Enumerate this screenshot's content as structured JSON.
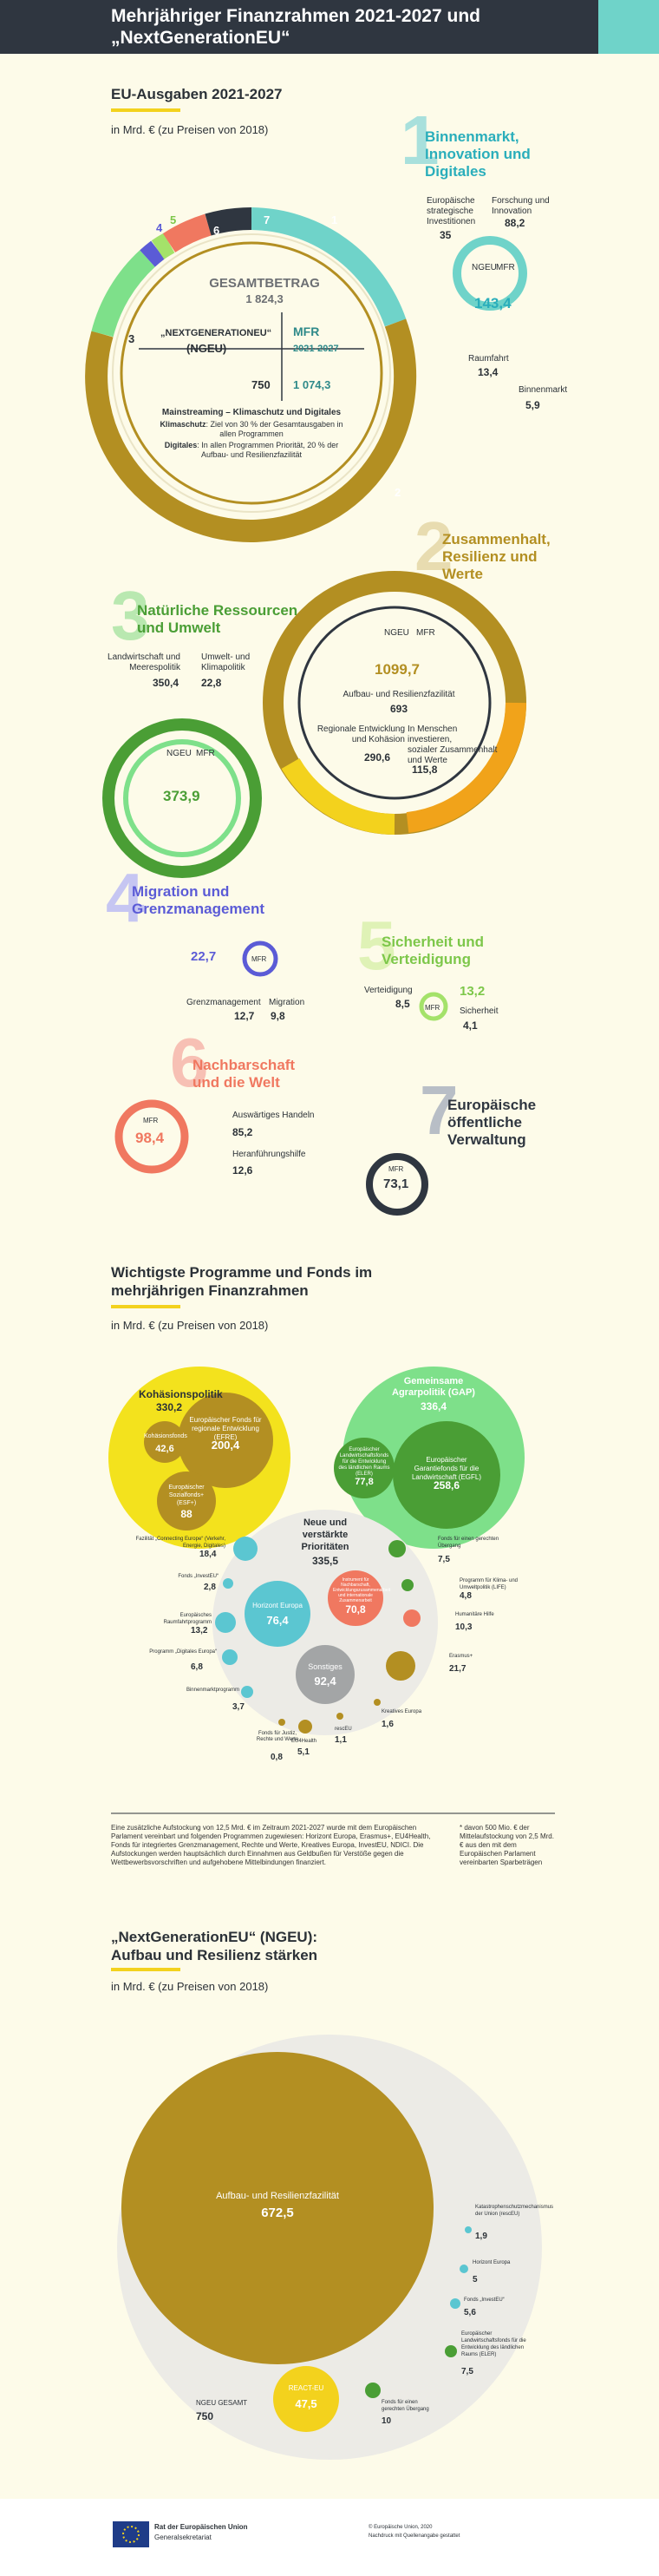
{
  "header": {
    "title_line1": "Mehrjähriger Finanzrahmen 2021-2027 und",
    "title_line2": "„NextGenerationEU“"
  },
  "section1": {
    "title": "EU-Ausgaben 2021-2027",
    "subtitle": "in Mrd. € (zu Preisen von 2018)",
    "segment_numbers": [
      "1",
      "2",
      "3",
      "4",
      "5",
      "6",
      "7"
    ],
    "gesamtbetrag_label": "GESAMTBETRAG",
    "gesamtbetrag_value": "1 824,3",
    "ngeu_label_line1": "„NEXTGENERATIONEU“",
    "ngeu_label_line2": "(NGEU)",
    "ngeu_value": "750",
    "mfr_label": "MFR",
    "mfr_years": "2021-2027",
    "mfr_value": "1 074,3",
    "mainstreaming_title": "Mainstreaming – Klimaschutz und Digitales",
    "klima_label": "Klimaschutz",
    "klima_text": ": Ziel von 30 % der Gesamtausgaben in allen Programmen",
    "digital_label": "Digitales",
    "digital_text": ": In allen Programmen Priorität, 20 % der Aufbau- und Resilienzfazilität"
  },
  "cat1": {
    "number": "1",
    "title_line1": "Binnenmarkt,",
    "title_line2": "Innovation und",
    "title_line3": "Digitales",
    "esi_label_line1": "Europäische",
    "esi_label_line2": "strategische",
    "esi_label_line3": "Investitionen",
    "esi_value": "35",
    "research_label_line1": "Forschung und",
    "research_label_line2": "Innovation",
    "research_value": "88,2",
    "ngeu": "NGEU",
    "mfr": "MFR",
    "total": "143,4",
    "space_label": "Raumfahrt",
    "space_value": "13,4",
    "market_label": "Binnenmarkt",
    "market_value": "5,9"
  },
  "cat2": {
    "number": "2",
    "title_line1": "Zusammenhalt,",
    "title_line2": "Resilienz und",
    "title_line3": "Werte",
    "ngeu": "NGEU",
    "mfr": "MFR",
    "total": "1099,7",
    "rrf_label": "Aufbau- und Resilienzfazilität",
    "rrf_value": "693",
    "regional_label_line1": "Regionale Entwicklung",
    "regional_label_line2": "und Kohäsion",
    "regional_value": "290,6",
    "people_label_line1": "In Menschen investieren,",
    "people_label_line2": "sozialer Zusammenhalt",
    "people_label_line3": "und Werte",
    "people_value": "115,8"
  },
  "cat3": {
    "number": "3",
    "title_line1": "Natürliche Ressourcen",
    "title_line2": "und Umwelt",
    "agri_label_line1": "Landwirtschaft und",
    "agri_label_line2": "Meerespolitik",
    "agri_value": "350,4",
    "env_label_line1": "Umwelt- und",
    "env_label_line2": "Klimapolitik",
    "env_value": "22,8",
    "ngeu": "NGEU",
    "mfr": "MFR",
    "total": "373,9"
  },
  "cat4": {
    "number": "4",
    "title_line1": "Migration und",
    "title_line2": "Grenzmanagement",
    "total": "22,7",
    "mfr": "MFR",
    "border_label": "Grenzmanagement",
    "border_value": "12,7",
    "migration_label": "Migration",
    "migration_value": "9,8"
  },
  "cat5": {
    "number": "5",
    "title_line1": "Sicherheit und",
    "title_line2": "Verteidigung",
    "total": "13,2",
    "mfr": "MFR",
    "defence_label": "Verteidigung",
    "defence_value": "8,5",
    "security_label": "Sicherheit",
    "security_value": "4,1"
  },
  "cat6": {
    "number": "6",
    "title_line1": "Nachbarschaft",
    "title_line2": "und die Welt",
    "mfr": "MFR",
    "total": "98,4",
    "external_label": "Auswärtiges Handeln",
    "external_value": "85,2",
    "preaccession_label": "Heranführungshilfe",
    "preaccession_value": "12,6"
  },
  "cat7": {
    "number": "7",
    "title_line1": "Europäische",
    "title_line2": "öffentliche",
    "title_line3": "Verwaltung",
    "mfr": "MFR",
    "total": "73,1"
  },
  "section2": {
    "title_line1": "Wichtigste Programme und Fonds im",
    "title_line2": "mehrjährigen Finanzrahmen",
    "subtitle": "in Mrd. € (zu Preisen von 2018)",
    "cohesion_title": "Kohäsionspolitik",
    "cohesion_value": "330,2",
    "efre_label": "Europäischer Fonds für regionale Entwicklung (EFRE)",
    "efre_value": "200,4",
    "kf_label": "Kohäsionsfonds",
    "kf_value": "42,6",
    "esf_label_line1": "Europäischer",
    "esf_label_line2": "Sozialfonds+",
    "esf_label_line3": "(ESF+)",
    "esf_value": "88",
    "gap_title_line1": "Gemeinsame",
    "gap_title_line2": "Agrarpolitik (GAP)",
    "gap_value": "336,4",
    "eler_label": "Europäischer Landwirtschaftsfonds für die Entwicklung des ländlichen Raums (ELER)",
    "eler_value": "77,8",
    "egfl_label": "Europäischer Garantiefonds für die Landwirtschaft (EGFL)",
    "egfl_value": "258,6",
    "new_title_line1": "Neue und",
    "new_title_line2": "verstärkte",
    "new_title_line3": "Prioritäten",
    "new_value": "335,5",
    "cef_label": "Fazilität „Connecting Europe“ (Verkehr, Energie, Digitales)",
    "cef_value": "18,4",
    "investeu_label": "Fonds „InvestEU“",
    "investeu_value": "2,8",
    "horizon_label": "Horizont Europa",
    "horizon_value": "76,4",
    "space_label": "Europäisches Raumfahrtprogramm",
    "space_value": "13,2",
    "digital_label": "Programm „Digitales Europa“",
    "digital_value": "6,8",
    "single_label": "Binnenmarktprogramm",
    "single_value": "3,7",
    "justice_label": "Fonds für Justiz, Rechte und Werte",
    "justice_value": "0,8",
    "eu4health_label": "EU4Health",
    "eu4health_value": "5,1",
    "rescue_label": "rescEU",
    "rescue_value": "1,1",
    "creative_label": "Kreatives Europa",
    "creative_value": "1,6",
    "erasmus_label": "Erasmus+",
    "erasmus_value": "21,7",
    "jtf_label": "Fonds für einen gerechten Übergang",
    "jtf_value": "7,5",
    "life_label": "Programm für Klima- und Umweltpolitik (LIFE)",
    "life_value": "4,8",
    "huma_label": "Humanitäre Hilfe",
    "huma_value": "10,3",
    "ndici_label": "Instrument für Nachbarschaft, Entwicklungszusammenarbeit und internationale Zusammenarbeit",
    "ndici_value": "70,8",
    "other_label": "Sonstiges",
    "other_value": "92,4",
    "footnote_left": "Eine zusätzliche Aufstockung von 12,5 Mrd. € im Zeitraum 2021-2027 wurde mit dem Europäischen Parlament vereinbart und folgenden Programmen zugewiesen: Horizont Europa, Erasmus+, EU4Health, Fonds für integriertes Grenzmanagement, Rechte und Werte, Kreatives Europa, InvestEU, NDICI. Die Aufstockungen werden hauptsächlich durch Einnahmen aus Geldbußen für Verstöße gegen die Wettbewerbsvorschriften und aufgehobene Mittelbindungen finanziert.",
    "footnote_right": "* davon 500 Mio. € der Mittelaufstockung von 2,5 Mrd. € aus den mit dem Europäischen Parlament vereinbarten Sparbeträgen"
  },
  "section3": {
    "title_line1": "„NextGenerationEU“ (NGEU):",
    "title_line2": "Aufbau und Resilienz stärken",
    "subtitle": "in Mrd. € (zu Preisen von 2018)",
    "rrf_label": "Aufbau- und Resilienzfazilität",
    "rrf_value": "672,5",
    "total_label": "NGEU GESAMT",
    "total_value": "750",
    "react_label": "REACT-EU",
    "react_value": "47,5",
    "jtf_label": "Fonds für einen gerechten Übergang",
    "jtf_value": "10",
    "eler_label": "Europäischer Landwirtschaftsfonds für die Entwicklung des ländlichen Raums (ELER)",
    "eler_value": "7,5",
    "investeu_label": "Fonds „InvestEU“",
    "investeu_value": "5,6",
    "horizon_label": "Horizont Europa",
    "horizon_value": "5",
    "rescue_label": "Katastrophenschutzmechanismus der Union (rescEU)",
    "rescue_value": "1,9"
  },
  "footer": {
    "org_line1": "Rat der Europäischen Union",
    "org_line2": "Generalsekretariat",
    "copyright_line1": "© Europäische Union, 2020",
    "copyright_line2": "Nachdruck mit Quellenangabe gestattet"
  },
  "colors": {
    "dark": "#2f3640",
    "teal": "#6fd3c9",
    "olive": "#b38f22",
    "green": "#4a9e35",
    "lightgreen": "#7ee08a",
    "purple": "#5b5bd6",
    "salmon": "#f07860",
    "yellow": "#f3d21d",
    "orange": "#f1a31a"
  }
}
